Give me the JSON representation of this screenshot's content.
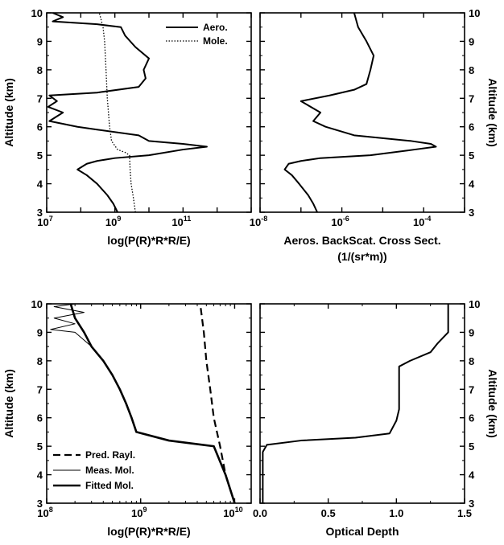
{
  "chart_data": [
    {
      "type": "line",
      "xscale": "log",
      "xlim": [
        10000000.0,
        10000000000000.0
      ],
      "ylim": [
        3,
        10
      ],
      "xlabel": "log(P(R)*R*R/E)",
      "ylabel": "Altitude (km)",
      "xtick_labels": [
        {
          "base": "10",
          "exp": "7"
        },
        {
          "base": "10",
          "exp": "9"
        },
        {
          "base": "10",
          "exp": "11"
        }
      ],
      "ytick_labels": [
        "3",
        "4",
        "5",
        "6",
        "7",
        "8",
        "9",
        "10"
      ],
      "legend": {
        "placement": "top-right"
      },
      "series": [
        {
          "name": "Aero.",
          "style": "solid",
          "points": [
            [
              1200000000.0,
              3
            ],
            [
              900000000.0,
              3.3
            ],
            [
              600000000.0,
              3.6
            ],
            [
              300000000.0,
              4
            ],
            [
              150000000.0,
              4.3
            ],
            [
              80000000.0,
              4.5
            ],
            [
              150000000.0,
              4.7
            ],
            [
              300000000.0,
              4.8
            ],
            [
              1000000000.0,
              4.9
            ],
            [
              10000000000.0,
              5.0
            ],
            [
              100000000000.0,
              5.2
            ],
            [
              500000000000.0,
              5.3
            ],
            [
              100000000000.0,
              5.4
            ],
            [
              10000000000.0,
              5.5
            ],
            [
              5000000000.0,
              5.7
            ],
            [
              300000000.0,
              5.9
            ],
            [
              80000000.0,
              6.0
            ],
            [
              12000000.0,
              6.2
            ],
            [
              30000000.0,
              6.5
            ],
            [
              11000000.0,
              6.7
            ],
            [
              20000000.0,
              6.9
            ],
            [
              12000000.0,
              7.1
            ],
            [
              300000000.0,
              7.2
            ],
            [
              5000000000.0,
              7.4
            ],
            [
              8000000000.0,
              7.7
            ],
            [
              7000000000.0,
              8.0
            ],
            [
              10000000000.0,
              8.4
            ],
            [
              4000000000.0,
              8.8
            ],
            [
              2000000000.0,
              9.2
            ],
            [
              1500000000.0,
              9.5
            ],
            [
              300000000.0,
              9.6
            ],
            [
              15000000.0,
              9.7
            ],
            [
              30000000.0,
              9.85
            ],
            [
              15000000.0,
              10
            ]
          ]
        },
        {
          "name": "Mole.",
          "style": "dotted",
          "points": [
            [
              4000000000.0,
              3
            ],
            [
              3500000000.0,
              3.5
            ],
            [
              3000000000.0,
              4
            ],
            [
              2800000000.0,
              4.5
            ],
            [
              2700000000.0,
              5
            ],
            [
              2000000000.0,
              5.1
            ],
            [
              1200000000.0,
              5.2
            ],
            [
              800000000.0,
              5.5
            ],
            [
              700000000.0,
              6
            ],
            [
              600000000.0,
              7
            ],
            [
              550000000.0,
              8
            ],
            [
              500000000.0,
              9
            ],
            [
              450000000.0,
              9.5
            ],
            [
              350000000.0,
              10
            ]
          ]
        }
      ]
    },
    {
      "type": "line",
      "xscale": "log",
      "xlim": [
        1e-08,
        0.001
      ],
      "ylim": [
        3,
        10
      ],
      "xlabel": "Aeros. BackScat. Cross Sect.",
      "xlabel2": "(1/(sr*m))",
      "ylabel": "Altitude (km)",
      "xtick_labels": [
        {
          "base": "10",
          "exp": "-8"
        },
        {
          "base": "10",
          "exp": "-6"
        },
        {
          "base": "10",
          "exp": "-4"
        }
      ],
      "ytick_labels": [
        "3",
        "4",
        "5",
        "6",
        "7",
        "8",
        "9",
        "10"
      ],
      "series": [
        {
          "name": "",
          "style": "solid",
          "points": [
            [
              2.5e-07,
              3
            ],
            [
              2e-07,
              3.3
            ],
            [
              1.5e-07,
              3.6
            ],
            [
              9e-08,
              4
            ],
            [
              6e-08,
              4.3
            ],
            [
              4e-08,
              4.5
            ],
            [
              5e-08,
              4.7
            ],
            [
              1e-07,
              4.8
            ],
            [
              3e-07,
              4.9
            ],
            [
              5e-06,
              5.0
            ],
            [
              6e-05,
              5.2
            ],
            [
              0.0002,
              5.3
            ],
            [
              0.00015,
              5.4
            ],
            [
              5e-05,
              5.5
            ],
            [
              2e-06,
              5.7
            ],
            [
              4e-07,
              6
            ],
            [
              2e-07,
              6.2
            ],
            [
              3e-07,
              6.5
            ],
            [
              1e-07,
              6.9
            ],
            [
              5e-07,
              7.1
            ],
            [
              2e-06,
              7.3
            ],
            [
              4e-06,
              7.5
            ],
            [
              5e-06,
              8
            ],
            [
              6e-06,
              8.5
            ],
            [
              4e-06,
              9
            ],
            [
              2.5e-06,
              9.5
            ],
            [
              2e-06,
              10
            ]
          ]
        }
      ]
    },
    {
      "type": "line",
      "xscale": "log",
      "xlim": [
        100000000.0,
        15000000000.0
      ],
      "ylim": [
        3,
        10
      ],
      "xlabel": "log(P(R)*R*R/E)",
      "ylabel": "Altitude (km)",
      "xtick_labels": [
        {
          "base": "10",
          "exp": "8"
        },
        {
          "base": "10",
          "exp": "9"
        },
        {
          "base": "10",
          "exp": "10"
        }
      ],
      "ytick_labels": [
        "3",
        "4",
        "5",
        "6",
        "7",
        "8",
        "9",
        "10"
      ],
      "legend": {
        "placement": "bottom-left"
      },
      "series": [
        {
          "name": "Pred. Rayl.",
          "style": "dashed",
          "points": [
            [
              10000000000.0,
              3
            ],
            [
              8000000000.0,
              4
            ],
            [
              7000000000.0,
              5
            ],
            [
              6000000000.0,
              6
            ],
            [
              5500000000.0,
              7
            ],
            [
              5000000000.0,
              8
            ],
            [
              4700000000.0,
              9
            ],
            [
              4300000000.0,
              10
            ]
          ]
        },
        {
          "name": "Meas. Mol.",
          "style": "thin",
          "points": [
            [
              10000000000.0,
              3
            ],
            [
              8000000000.0,
              4
            ],
            [
              6000000000.0,
              5
            ],
            [
              2000000000.0,
              5.2
            ],
            [
              900000000.0,
              5.5
            ],
            [
              800000000.0,
              6
            ],
            [
              700000000.0,
              6.5
            ],
            [
              600000000.0,
              7
            ],
            [
              500000000.0,
              7.5
            ],
            [
              400000000.0,
              8
            ],
            [
              300000000.0,
              8.5
            ],
            [
              200000000.0,
              9
            ],
            [
              110000000.0,
              9.1
            ],
            [
              200000000.0,
              9.3
            ],
            [
              120000000.0,
              9.5
            ],
            [
              250000000.0,
              9.7
            ],
            [
              120000000.0,
              9.9
            ],
            [
              200000000.0,
              10
            ]
          ]
        },
        {
          "name": "Fitted Mol.",
          "style": "thick",
          "points": [
            [
              10000000000.0,
              3
            ],
            [
              8000000000.0,
              4
            ],
            [
              6000000000.0,
              5
            ],
            [
              2000000000.0,
              5.2
            ],
            [
              900000000.0,
              5.5
            ],
            [
              800000000.0,
              6
            ],
            [
              700000000.0,
              6.5
            ],
            [
              600000000.0,
              7
            ],
            [
              500000000.0,
              7.5
            ],
            [
              400000000.0,
              8
            ],
            [
              300000000.0,
              8.5
            ],
            [
              250000000.0,
              9
            ],
            [
              200000000.0,
              9.5
            ],
            [
              180000000.0,
              10
            ]
          ]
        }
      ]
    },
    {
      "type": "line",
      "xscale": "linear",
      "xlim": [
        0,
        1.5
      ],
      "ylim": [
        3,
        10
      ],
      "xlabel": "Optical Depth",
      "ylabel": "Altitude (km)",
      "xtick_labels": [
        "0.0",
        "0.5",
        "1.0",
        "1.5"
      ],
      "ytick_labels": [
        "3",
        "4",
        "5",
        "6",
        "7",
        "8",
        "9",
        "10"
      ],
      "series": [
        {
          "name": "",
          "style": "solid",
          "points": [
            [
              0.02,
              3
            ],
            [
              0.02,
              4
            ],
            [
              0.02,
              4.8
            ],
            [
              0.05,
              5.05
            ],
            [
              0.3,
              5.2
            ],
            [
              0.7,
              5.3
            ],
            [
              0.95,
              5.45
            ],
            [
              1.0,
              5.9
            ],
            [
              1.02,
              6.3
            ],
            [
              1.02,
              7.8
            ],
            [
              1.1,
              8.0
            ],
            [
              1.25,
              8.3
            ],
            [
              1.3,
              8.6
            ],
            [
              1.38,
              9.0
            ],
            [
              1.38,
              10
            ]
          ]
        }
      ]
    }
  ]
}
